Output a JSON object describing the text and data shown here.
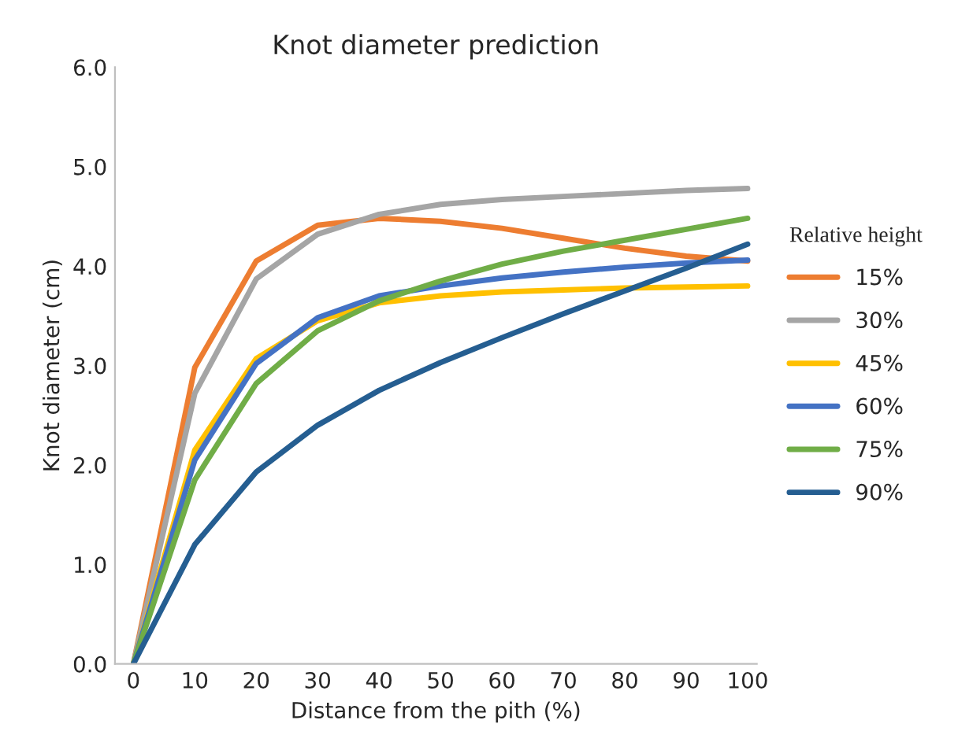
{
  "chart_data": {
    "type": "line",
    "title": "Knot diameter prediction",
    "xlabel": "Distance from the pith (%)",
    "ylabel": "Knot diameter (cm)",
    "legend_title": "Relative height",
    "legend": "right",
    "grid": false,
    "marker": "none",
    "line_style": "solid",
    "categories": [
      "0",
      "10",
      "20",
      "30",
      "40",
      "50",
      "60",
      "70",
      "80",
      "90",
      "100"
    ],
    "ylim": [
      0,
      6
    ],
    "yticks": [
      {
        "value": 0,
        "label": "0.0"
      },
      {
        "value": 1,
        "label": "1.0"
      },
      {
        "value": 2,
        "label": "2.0"
      },
      {
        "value": 3,
        "label": "3.0"
      },
      {
        "value": 4,
        "label": "4.0"
      },
      {
        "value": 5,
        "label": "5.0"
      },
      {
        "value": 6,
        "label": "6.0"
      }
    ],
    "series": [
      {
        "name": "15%",
        "color": "#ed7d31",
        "values": [
          0,
          2.98,
          4.05,
          4.41,
          4.48,
          4.45,
          4.38,
          4.28,
          4.18,
          4.1,
          4.05
        ]
      },
      {
        "name": "30%",
        "color": "#a5a5a5",
        "values": [
          0,
          2.72,
          3.87,
          4.32,
          4.52,
          4.62,
          4.67,
          4.7,
          4.73,
          4.76,
          4.78
        ]
      },
      {
        "name": "45%",
        "color": "#ffc000",
        "values": [
          0,
          2.15,
          3.07,
          3.45,
          3.63,
          3.7,
          3.74,
          3.76,
          3.78,
          3.79,
          3.8
        ]
      },
      {
        "name": "60%",
        "color": "#4472c4",
        "values": [
          0,
          2.05,
          3.02,
          3.48,
          3.7,
          3.8,
          3.88,
          3.94,
          3.99,
          4.03,
          4.06
        ]
      },
      {
        "name": "75%",
        "color": "#70ad47",
        "values": [
          0,
          1.85,
          2.82,
          3.35,
          3.65,
          3.85,
          4.02,
          4.15,
          4.26,
          4.37,
          4.48
        ]
      },
      {
        "name": "90%",
        "color": "#255e91",
        "values": [
          0,
          1.2,
          1.93,
          2.4,
          2.75,
          3.03,
          3.28,
          3.52,
          3.75,
          3.98,
          4.22
        ]
      }
    ]
  }
}
